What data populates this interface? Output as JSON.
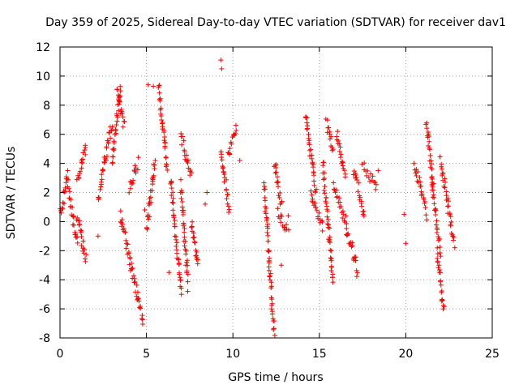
{
  "chart_data": {
    "type": "scatter",
    "title": "Day 359 of 2025, Sidereal Day-to-day VTEC variation (SDTVAR) for receiver dav1",
    "xlabel": "GPS time / hours",
    "ylabel": "SDTVAR / TECUs",
    "xlim": [
      0,
      25
    ],
    "ylim": [
      -8,
      12
    ],
    "xticks": [
      "0",
      "5",
      "10",
      "15",
      "20",
      "25"
    ],
    "yticks": [
      "-8",
      "-6",
      "-4",
      "-2",
      "0",
      "2",
      "4",
      "6",
      "8",
      "10",
      "12"
    ],
    "grid": true,
    "marker": "+",
    "color": "#ff0000",
    "series": [
      {
        "name": "SDTVAR",
        "segments": [
          {
            "t": [
              0.0,
              0.45
            ],
            "v": [
              0.3,
              3.3
            ]
          },
          {
            "t": [
              0.45,
              1.0
            ],
            "v": [
              2.5,
              -1.5
            ]
          },
          {
            "t": [
              1.0,
              1.5
            ],
            "v": [
              0.5,
              -2.8
            ]
          },
          {
            "t": [
              1.0,
              1.5
            ],
            "v": [
              2.8,
              5.2
            ]
          },
          {
            "t": [
              2.2,
              3.0
            ],
            "v": [
              1.5,
              6.8
            ]
          },
          {
            "t": [
              3.0,
              3.5
            ],
            "v": [
              4.0,
              9.3
            ]
          },
          {
            "t": [
              3.3,
              3.7
            ],
            "v": [
              9.2,
              6.5
            ]
          },
          {
            "t": [
              3.5,
              4.1
            ],
            "v": [
              0.5,
              -3.0
            ]
          },
          {
            "t": [
              4.1,
              4.8
            ],
            "v": [
              -3.0,
              -6.8
            ]
          },
          {
            "t": [
              4.0,
              4.5
            ],
            "v": [
              2.2,
              4.1
            ]
          },
          {
            "t": [
              5.0,
              5.5
            ],
            "v": [
              -0.5,
              4.2
            ]
          },
          {
            "t": [
              5.7,
              6.2
            ],
            "v": [
              9.4,
              3.5
            ]
          },
          {
            "t": [
              6.4,
              7.0
            ],
            "v": [
              3.0,
              -5.0
            ]
          },
          {
            "t": [
              7.0,
              7.4
            ],
            "v": [
              2.5,
              -4.4
            ]
          },
          {
            "t": [
              7.0,
              7.6
            ],
            "v": [
              6.0,
              3.0
            ]
          },
          {
            "t": [
              7.6,
              8.0
            ],
            "v": [
              0.0,
              -3.2
            ]
          },
          {
            "t": [
              9.3,
              9.8
            ],
            "v": [
              4.8,
              0.8
            ]
          },
          {
            "t": [
              9.7,
              10.2
            ],
            "v": [
              4.5,
              6.5
            ]
          },
          {
            "t": [
              11.8,
              12.4
            ],
            "v": [
              2.5,
              -7.8
            ]
          },
          {
            "t": [
              12.4,
              12.8
            ],
            "v": [
              4.1,
              1.0
            ]
          },
          {
            "t": [
              12.6,
              13.2
            ],
            "v": [
              0.6,
              -0.8
            ]
          },
          {
            "t": [
              14.2,
              14.8
            ],
            "v": [
              7.4,
              2.0
            ]
          },
          {
            "t": [
              14.5,
              15.2
            ],
            "v": [
              2.0,
              -0.4
            ]
          },
          {
            "t": [
              15.2,
              15.8
            ],
            "v": [
              4.0,
              -4.2
            ]
          },
          {
            "t": [
              15.4,
              15.8
            ],
            "v": [
              7.0,
              5.0
            ]
          },
          {
            "t": [
              15.8,
              16.5
            ],
            "v": [
              2.5,
              0.0
            ]
          },
          {
            "t": [
              16.0,
              16.5
            ],
            "v": [
              6.0,
              3.0
            ]
          },
          {
            "t": [
              16.5,
              17.2
            ],
            "v": [
              0.0,
              -3.5
            ]
          },
          {
            "t": [
              17.0,
              17.6
            ],
            "v": [
              3.5,
              0.5
            ]
          },
          {
            "t": [
              17.5,
              18.3
            ],
            "v": [
              3.8,
              2.5
            ]
          },
          {
            "t": [
              20.5,
              21.2
            ],
            "v": [
              4.0,
              0.5
            ]
          },
          {
            "t": [
              21.2,
              21.6
            ],
            "v": [
              7.0,
              2.0
            ]
          },
          {
            "t": [
              21.5,
              22.0
            ],
            "v": [
              2.5,
              -2.0
            ]
          },
          {
            "t": [
              21.8,
              22.2
            ],
            "v": [
              -2.0,
              -6.1
            ]
          },
          {
            "t": [
              22.0,
              22.8
            ],
            "v": [
              4.2,
              -1.5
            ]
          }
        ],
        "points": [
          {
            "t": 9.3,
            "v": 11.1
          },
          {
            "t": 9.35,
            "v": 10.5
          },
          {
            "t": 5.4,
            "v": 9.3
          },
          {
            "t": 5.1,
            "v": 9.4
          },
          {
            "t": 20.0,
            "v": -1.5
          },
          {
            "t": 19.9,
            "v": 0.5
          },
          {
            "t": 14.3,
            "v": 6.4
          },
          {
            "t": 10.4,
            "v": 4.2
          },
          {
            "t": 8.4,
            "v": 1.2
          },
          {
            "t": 8.5,
            "v": 2.0
          },
          {
            "t": 13.2,
            "v": 0.4
          },
          {
            "t": 6.3,
            "v": -3.5
          },
          {
            "t": 12.1,
            "v": -2.7
          },
          {
            "t": 12.8,
            "v": -3.0
          },
          {
            "t": 18.4,
            "v": 3.5
          },
          {
            "t": 2.2,
            "v": -1.0
          },
          {
            "t": 4.9,
            "v": 0.8
          }
        ]
      }
    ]
  }
}
